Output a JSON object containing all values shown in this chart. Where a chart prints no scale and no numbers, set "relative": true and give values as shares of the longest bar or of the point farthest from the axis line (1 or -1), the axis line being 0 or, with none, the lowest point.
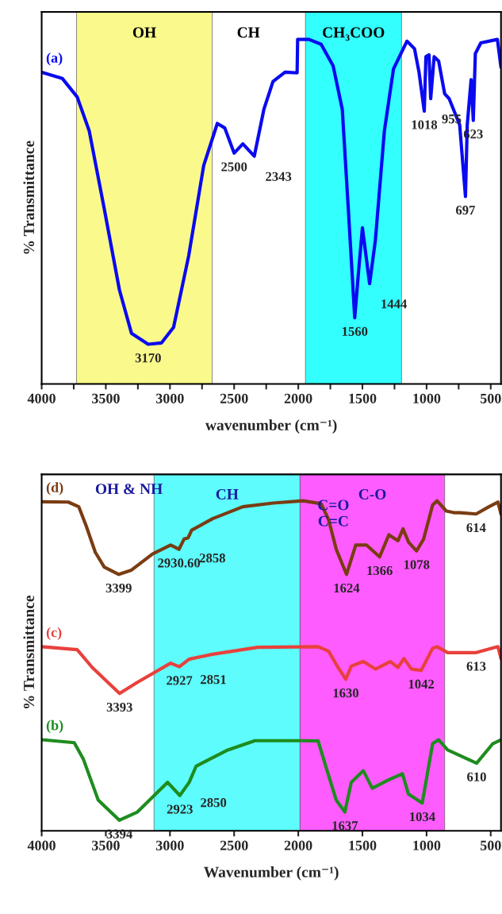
{
  "chart_data": [
    {
      "type": "line",
      "relative": true,
      "xlabel": "wavenumber (cm⁻¹)",
      "ylabel": "% Transmittance",
      "xlim": [
        4000,
        420
      ],
      "xticks": [
        4000,
        {
          "value": 3750,
          "label": null
        },
        3500,
        {
          "value": 3250,
          "label": null
        },
        3000,
        {
          "value": 2750,
          "label": null
        },
        2500,
        {
          "value": 2250,
          "label": null
        },
        2000,
        {
          "value": 1750,
          "label": null
        },
        1500,
        {
          "value": 1250,
          "label": null
        },
        1000,
        {
          "value": 750,
          "label": null
        },
        500
      ],
      "grid": false,
      "legend": false,
      "bands": [
        {
          "axis": "x",
          "from": 3728,
          "to": 2671,
          "label": "OH",
          "color": "#fafa8c"
        },
        {
          "axis": "x",
          "from": 1944,
          "to": 1195,
          "label": "CH₃COO",
          "color": "#33ffff"
        }
      ],
      "series": [
        {
          "name": "(a)",
          "color": "#0a0af0",
          "x": [
            4000,
            3840,
            3723,
            3629,
            3512,
            3394,
            3300,
            3170,
            3066,
            2972,
            2854,
            2737,
            2631,
            2573,
            2500,
            2432,
            2343,
            2268,
            2197,
            2103,
            2009,
            2005,
            1916,
            1822,
            1728,
            1657,
            1610,
            1560,
            1530,
            1500,
            1444,
            1399,
            1329,
            1258,
            1153,
            1094,
            1059,
            1018,
            1005,
            981,
            968,
            941,
            906,
            859,
            824,
            742,
            697,
            683,
            653,
            636,
            620,
            577,
            448,
            420
          ],
          "values": [
            0.905,
            0.887,
            0.833,
            0.734,
            0.508,
            0.273,
            0.147,
            0.115,
            0.119,
            0.164,
            0.372,
            0.634,
            0.756,
            0.743,
            0.67,
            0.697,
            0.661,
            0.797,
            0.878,
            0.905,
            0.903,
            1.0,
            1.0,
            0.986,
            0.923,
            0.797,
            0.508,
            0.192,
            0.327,
            0.453,
            0.291,
            0.417,
            0.734,
            0.914,
            0.995,
            0.973,
            0.905,
            0.792,
            0.95,
            0.955,
            0.828,
            0.95,
            0.937,
            0.842,
            0.828,
            0.752,
            0.544,
            0.752,
            0.883,
            0.765,
            0.959,
            0.99,
            1.0,
            0.919
          ]
        }
      ],
      "annotations": [
        "CH",
        {
          "text": "3170",
          "x": 3170,
          "y": 0.115
        },
        {
          "text": "2500",
          "x": 2500,
          "y": 0.67
        },
        {
          "text": "2343",
          "x": 2343,
          "y": 0.661
        },
        {
          "text": "1560",
          "x": 1560,
          "y": 0.192
        },
        {
          "text": "1444",
          "x": 1444,
          "y": 0.291
        },
        {
          "text": "1018",
          "x": 1018,
          "y": 0.792
        },
        {
          "text": "955",
          "x": 968,
          "y": 0.828
        },
        {
          "text": "697",
          "x": 697,
          "y": 0.544
        },
        {
          "text": "623",
          "x": 636,
          "y": 0.765
        }
      ]
    },
    {
      "type": "line",
      "relative": true,
      "xlabel": "Wavenumber (cm⁻¹)",
      "ylabel": "% Transmittance",
      "xlim": [
        4000,
        420
      ],
      "xticks": [
        4000,
        3500,
        3000,
        2500,
        2000,
        1500,
        1000,
        500
      ],
      "grid": false,
      "legend": false,
      "bands": [
        {
          "axis": "x",
          "from": 3124,
          "to": 1986,
          "label": "CH",
          "color": "#5efcfc"
        },
        {
          "axis": "x",
          "from": 1986,
          "to": 859,
          "label": "C-O",
          "color": "#ff5cff"
        }
      ],
      "series": [
        {
          "name": "(d)",
          "color": "#7a3c12",
          "x": [
            4000,
            3793,
            3711,
            3653,
            3582,
            3512,
            3399,
            3300,
            3136,
            2995,
            2930,
            2890,
            2858,
            2831,
            2667,
            2432,
            2197,
            1962,
            1822,
            1763,
            1704,
            1624,
            1552,
            1469,
            1366,
            1294,
            1223,
            1183,
            1141,
            1078,
            1023,
            953,
            918,
            847,
            789,
            742,
            614,
            514,
            444,
            420
          ],
          "values": [
            0.997,
            0.996,
            0.982,
            0.924,
            0.844,
            0.799,
            0.777,
            0.79,
            0.839,
            0.866,
            0.853,
            0.884,
            0.888,
            0.911,
            0.946,
            0.982,
            0.993,
            1.0,
            0.991,
            0.942,
            0.853,
            0.777,
            0.866,
            0.866,
            0.83,
            0.897,
            0.879,
            0.915,
            0.875,
            0.848,
            0.884,
            0.987,
            1.0,
            0.969,
            0.964,
            0.964,
            0.96,
            0.982,
            0.996,
            0.96
          ]
        },
        {
          "name": "(c)",
          "color": "#e8413c",
          "x": [
            4000,
            3723,
            3606,
            3393,
            3254,
            2995,
            2927,
            2851,
            2667,
            2315,
            1845,
            1763,
            1704,
            1630,
            1587,
            1493,
            1399,
            1282,
            1223,
            1177,
            1118,
            1042,
            953,
            918,
            836,
            613,
            444,
            420
          ],
          "values": [
            0.558,
            0.549,
            0.495,
            0.416,
            0.45,
            0.508,
            0.497,
            0.52,
            0.535,
            0.556,
            0.558,
            0.544,
            0.504,
            0.459,
            0.499,
            0.513,
            0.49,
            0.513,
            0.495,
            0.522,
            0.49,
            0.486,
            0.553,
            0.558,
            0.54,
            0.54,
            0.558,
            0.522
          ]
        },
        {
          "name": "(b)",
          "color": "#1e8c1e",
          "x": [
            4000,
            3746,
            3676,
            3559,
            3394,
            3254,
            3019,
            2923,
            2850,
            2796,
            2549,
            2338,
            1962,
            1845,
            1775,
            1704,
            1637,
            1587,
            1493,
            1423,
            1294,
            1188,
            1141,
            1034,
            953,
            906,
            836,
            610,
            484,
            420
          ],
          "values": [
            0.276,
            0.267,
            0.218,
            0.093,
            0.032,
            0.057,
            0.147,
            0.107,
            0.147,
            0.196,
            0.245,
            0.273,
            0.273,
            0.272,
            0.182,
            0.093,
            0.057,
            0.147,
            0.182,
            0.129,
            0.155,
            0.173,
            0.111,
            0.084,
            0.264,
            0.276,
            0.245,
            0.205,
            0.264,
            0.276
          ]
        }
      ],
      "annotations": [
        "OH & NH",
        "C=O\nC=C",
        {
          "text": "3399",
          "x": 3399,
          "y": 0.777
        },
        {
          "text": "2930.60",
          "x": 2930,
          "y": 0.853
        },
        {
          "text": "2858",
          "x": 2858,
          "y": 0.888
        },
        {
          "text": "1624",
          "x": 1624,
          "y": 0.777
        },
        {
          "text": "1366",
          "x": 1366,
          "y": 0.83
        },
        {
          "text": "1078",
          "x": 1078,
          "y": 0.848
        },
        {
          "text": "614",
          "x": 614,
          "y": 0.96
        },
        {
          "text": "3393",
          "x": 3393,
          "y": 0.416
        },
        {
          "text": "2927",
          "x": 2927,
          "y": 0.497
        },
        {
          "text": "2851",
          "x": 2851,
          "y": 0.52
        },
        {
          "text": "1630",
          "x": 1630,
          "y": 0.459
        },
        {
          "text": "1042",
          "x": 1042,
          "y": 0.486
        },
        {
          "text": "613",
          "x": 613,
          "y": 0.54
        },
        {
          "text": "3394",
          "x": 3394,
          "y": 0.032
        },
        {
          "text": "2923",
          "x": 2923,
          "y": 0.107
        },
        {
          "text": "2850",
          "x": 2850,
          "y": 0.147
        },
        {
          "text": "1637",
          "x": 1637,
          "y": 0.057
        },
        {
          "text": "1034",
          "x": 1034,
          "y": 0.084
        },
        {
          "text": "610",
          "x": 610,
          "y": 0.205
        }
      ]
    }
  ]
}
